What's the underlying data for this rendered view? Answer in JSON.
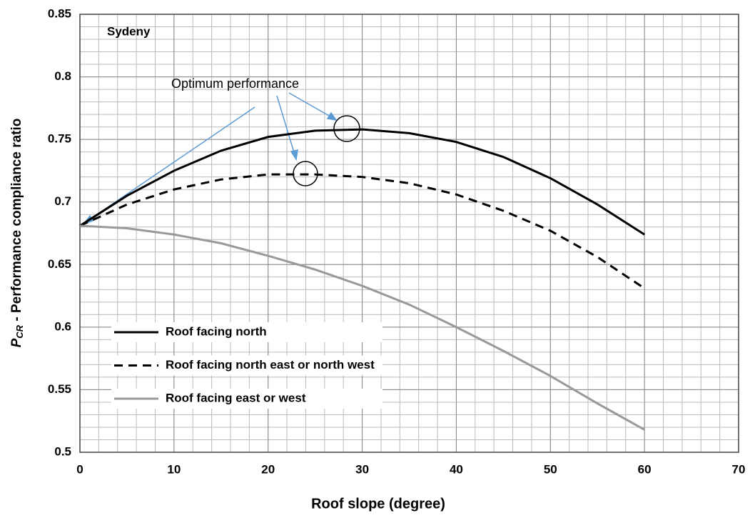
{
  "chart_data": {
    "type": "line",
    "title": "Sydeny",
    "annotation": "Optimum performance",
    "x_label": "Roof slope  (degree)",
    "y_label": {
      "symbol": "P",
      "subscript": "CR",
      "text": " -  Performance compliance ratio"
    },
    "x": [
      0,
      5,
      10,
      15,
      20,
      25,
      30,
      35,
      40,
      45,
      50,
      55,
      60
    ],
    "series": [
      {
        "name": "Roof facing north",
        "color": "#000000",
        "dash": false,
        "values": [
          0.681,
          0.705,
          0.725,
          0.741,
          0.752,
          0.757,
          0.758,
          0.755,
          0.748,
          0.736,
          0.719,
          0.698,
          0.674
        ]
      },
      {
        "name": "Roof facing north east or north west",
        "color": "#000000",
        "dash": true,
        "values": [
          0.681,
          0.698,
          0.71,
          0.718,
          0.722,
          0.722,
          0.72,
          0.715,
          0.706,
          0.693,
          0.677,
          0.656,
          0.631
        ]
      },
      {
        "name": "Roof facing east or west",
        "color": "#999999",
        "dash": false,
        "values": [
          0.681,
          0.679,
          0.674,
          0.667,
          0.657,
          0.646,
          0.633,
          0.618,
          0.6,
          0.581,
          0.561,
          0.539,
          0.518
        ]
      }
    ],
    "xlim": [
      0,
      70
    ],
    "xticks": [
      0,
      10,
      20,
      30,
      40,
      50,
      60,
      70
    ],
    "ylim": [
      0.5,
      0.85
    ],
    "yticks": [
      0.5,
      0.55,
      0.6,
      0.65,
      0.7,
      0.75,
      0.8,
      0.85
    ],
    "grid": true,
    "minor_grid": {
      "x": 2,
      "y": 0.01
    },
    "legend": "lower left"
  }
}
